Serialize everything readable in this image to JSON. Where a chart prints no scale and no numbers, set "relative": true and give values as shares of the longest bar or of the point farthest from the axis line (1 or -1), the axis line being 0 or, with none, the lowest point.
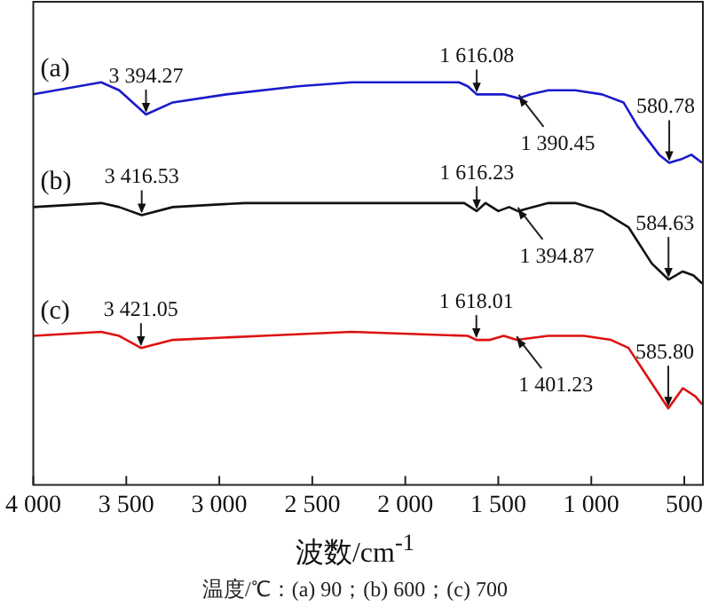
{
  "chart_data": {
    "type": "line",
    "relative": true,
    "xlabel": "波数/cm$^{-1}$",
    "xlim": [
      4000,
      400
    ],
    "xticks": [
      {
        "value": 4000,
        "label": "4 000"
      },
      {
        "value": 3500,
        "label": "3 500"
      },
      {
        "value": 3000,
        "label": "3 000"
      },
      {
        "value": 2500,
        "label": "2 500"
      },
      {
        "value": 2000,
        "label": "2 000"
      },
      {
        "value": 1500,
        "label": "1 500"
      },
      {
        "value": 1000,
        "label": "1 000"
      },
      500
    ],
    "grid": false,
    "legend": false,
    "marker": "none",
    "line_style": "solid",
    "tick_labels": "x",
    "series": [
      {
        "name": "(a)",
        "color": "#1a1acc",
        "x": [
          4000,
          3635,
          3538,
          3394,
          3250,
          2962,
          2577,
          2288,
          1712,
          1664,
          1616,
          1519,
          1471,
          1390,
          1327,
          1231,
          1087,
          942,
          827,
          750,
          635,
          581,
          510,
          462,
          404
        ],
        "values": [
          0.97,
          1.0,
          0.98,
          0.92,
          0.95,
          0.97,
          0.99,
          1.0,
          1.0,
          0.99,
          0.97,
          0.97,
          0.97,
          0.96,
          0.97,
          0.98,
          0.98,
          0.97,
          0.95,
          0.89,
          0.82,
          0.8,
          0.81,
          0.82,
          0.8
        ]
      },
      {
        "name": "(b)",
        "color": "#111111",
        "x": [
          4000,
          3635,
          3538,
          3417,
          3250,
          2865,
          2288,
          1683,
          1616,
          1568,
          1500,
          1442,
          1395,
          1231,
          1087,
          942,
          800,
          675,
          585,
          508,
          450,
          404
        ],
        "values": [
          0.69,
          0.7,
          0.69,
          0.67,
          0.69,
          0.7,
          0.7,
          0.7,
          0.68,
          0.7,
          0.68,
          0.69,
          0.68,
          0.7,
          0.7,
          0.68,
          0.64,
          0.55,
          0.51,
          0.53,
          0.52,
          0.5
        ]
      },
      {
        "name": "(c)",
        "color": "#dd1111",
        "x": [
          4000,
          3635,
          3538,
          3421,
          3250,
          2770,
          2288,
          1664,
          1618,
          1545,
          1471,
          1401,
          1231,
          1039,
          894,
          800,
          700,
          586,
          508,
          441,
          404
        ],
        "values": [
          0.37,
          0.38,
          0.37,
          0.34,
          0.36,
          0.37,
          0.38,
          0.37,
          0.36,
          0.36,
          0.37,
          0.36,
          0.37,
          0.37,
          0.36,
          0.34,
          0.27,
          0.19,
          0.24,
          0.22,
          0.2
        ]
      }
    ],
    "annotations": [
      {
        "text": "3 394.27",
        "x": 3394,
        "y": 0.92
      },
      {
        "text": "1 616.08",
        "x": 1616,
        "y": 0.97
      },
      {
        "text": "1 390.45",
        "x": 1390,
        "y": 0.96
      },
      {
        "text": "580.78",
        "x": 581,
        "y": 0.8
      },
      {
        "text": "3 416.53",
        "x": 3417,
        "y": 0.67
      },
      {
        "text": "1 616.23",
        "x": 1616,
        "y": 0.68
      },
      {
        "text": "1 394.87",
        "x": 1395,
        "y": 0.68
      },
      {
        "text": "584.63",
        "x": 585,
        "y": 0.51
      },
      {
        "text": "3 421.05",
        "x": 3421,
        "y": 0.34
      },
      {
        "text": "1 618.01",
        "x": 1618,
        "y": 0.36
      },
      {
        "text": "1 401.23",
        "x": 1401,
        "y": 0.36
      },
      {
        "text": "585.80",
        "x": 586,
        "y": 0.19
      },
      "温度/℃：(a) 90；(b) 600；(c) 700"
    ]
  }
}
